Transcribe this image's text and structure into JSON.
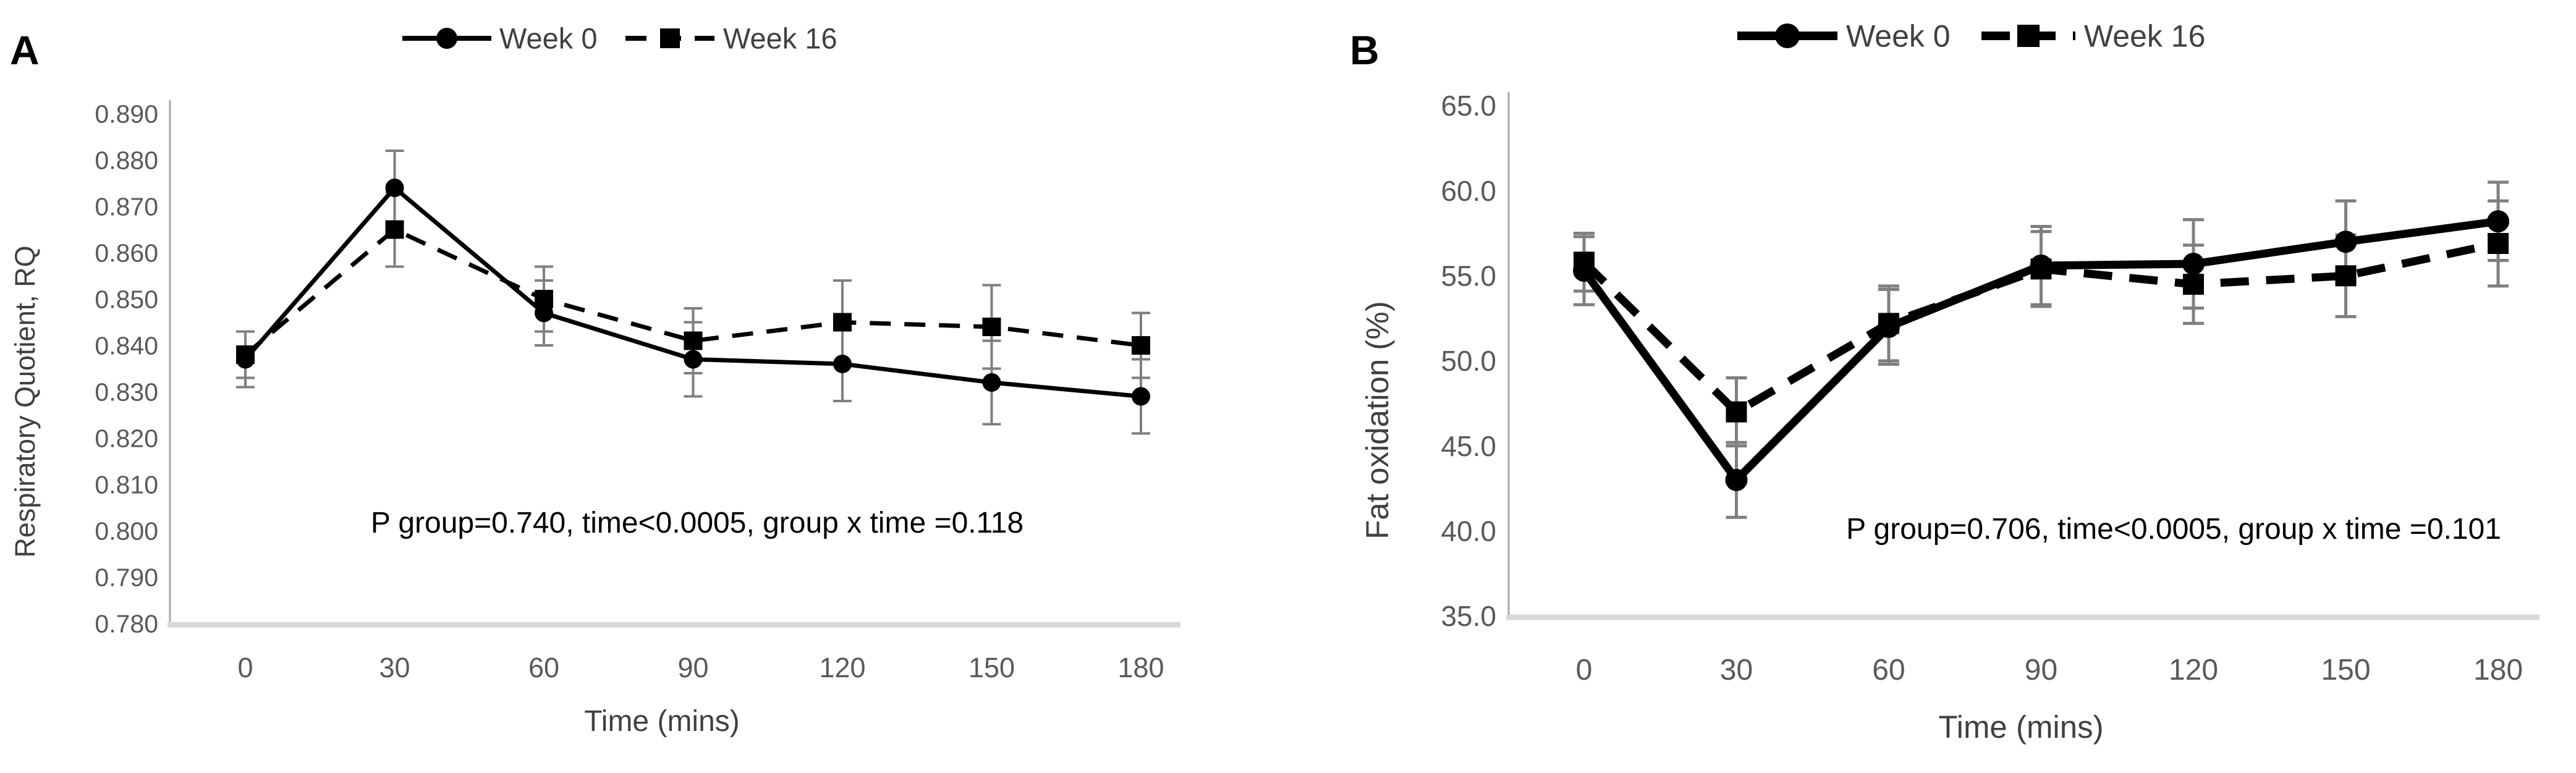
{
  "figure": {
    "background": "#ffffff",
    "description_panels": [
      "A",
      "B"
    ]
  },
  "chart_data": [
    {
      "type": "line",
      "panel_label": "A",
      "title": "",
      "xlabel": "Time (mins)",
      "ylabel": "Respiratory Quotient, RQ",
      "annotation": "P group=0.740, time<0.0005, group x time =0.118",
      "x": [
        0,
        30,
        60,
        90,
        120,
        150,
        180
      ],
      "x_tick_labels": [
        "0",
        "30",
        "60",
        "90",
        "120",
        "150",
        "180"
      ],
      "ylim": [
        0.78,
        0.89
      ],
      "y_tick_labels": [
        "0.890",
        "0.880",
        "0.870",
        "0.860",
        "0.850",
        "0.840",
        "0.830",
        "0.820",
        "0.810",
        "0.800",
        "0.790",
        "0.780"
      ],
      "grid": false,
      "legend_position": "top-center",
      "colors": {
        "series": "#000000",
        "error_bar": "#7f7f7f",
        "axis_line": "#a6a6a6",
        "baseline": "#d9d9d9",
        "tick_text": "#595959",
        "axis_title_text": "#404040",
        "annotation_text": "#000000"
      },
      "series": [
        {
          "name": "Week 0",
          "line_style": "solid",
          "marker": "circle",
          "values": [
            0.837,
            0.874,
            0.847,
            0.837,
            0.836,
            0.832,
            0.829
          ],
          "error_bars": [
            0.006,
            0.008,
            0.007,
            0.008,
            0.008,
            0.009,
            0.008
          ]
        },
        {
          "name": "Week 16",
          "line_style": "dashed",
          "marker": "square",
          "values": [
            0.838,
            0.865,
            0.85,
            0.841,
            0.845,
            0.844,
            0.84
          ],
          "error_bars": [
            0.005,
            0.008,
            0.007,
            0.007,
            0.009,
            0.009,
            0.007
          ]
        }
      ]
    },
    {
      "type": "line",
      "panel_label": "B",
      "title": "",
      "xlabel": "Time (mins)",
      "ylabel": "Fat oxidation (%)",
      "annotation": "P group=0.706, time<0.0005, group x time =0.101",
      "x": [
        0,
        30,
        60,
        90,
        120,
        150,
        180
      ],
      "x_tick_labels": [
        "0",
        "30",
        "60",
        "90",
        "120",
        "150",
        "180"
      ],
      "ylim": [
        35.0,
        65.0
      ],
      "y_tick_labels": [
        "65.0",
        "60.0",
        "55.0",
        "50.0",
        "45.0",
        "40.0",
        "35.0"
      ],
      "grid": false,
      "legend_position": "top-center",
      "colors": {
        "series": "#000000",
        "error_bar": "#7f7f7f",
        "axis_line": "#a6a6a6",
        "baseline": "#d9d9d9",
        "tick_text": "#595959",
        "axis_title_text": "#404040",
        "annotation_text": "#000000"
      },
      "series": [
        {
          "name": "Week 0",
          "line_style": "solid",
          "marker": "circle",
          "values": [
            55.3,
            43.0,
            52.0,
            55.6,
            55.7,
            57.0,
            58.2
          ],
          "error_bars": [
            2.0,
            2.2,
            2.2,
            2.3,
            2.6,
            2.4,
            2.3
          ]
        },
        {
          "name": "Week 16",
          "line_style": "dashed",
          "marker": "square",
          "values": [
            55.8,
            47.0,
            52.2,
            55.4,
            54.5,
            55.0,
            56.9
          ],
          "error_bars": [
            1.7,
            2.0,
            2.2,
            2.2,
            2.3,
            2.4,
            2.5
          ]
        }
      ]
    }
  ]
}
